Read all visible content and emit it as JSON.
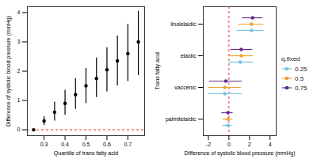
{
  "chart_data": [
    {
      "type": "scatter",
      "xlabel": "Quantile of trans fatty acid",
      "ylabel": "Difference of systolic blood pressure (mmHg)",
      "x": [
        0.25,
        0.3,
        0.35,
        0.4,
        0.45,
        0.5,
        0.55,
        0.6,
        0.65,
        0.7,
        0.75
      ],
      "values": [
        0,
        0.3,
        0.6,
        0.9,
        1.2,
        1.5,
        1.75,
        2.05,
        2.35,
        2.6,
        3.0
      ],
      "lower": [
        0,
        0.15,
        0.3,
        0.5,
        0.7,
        0.9,
        1.1,
        1.3,
        1.5,
        1.65,
        1.85
      ],
      "upper": [
        0,
        0.45,
        0.95,
        1.35,
        1.75,
        2.1,
        2.45,
        2.8,
        3.2,
        3.6,
        4.05
      ],
      "color": "#000000",
      "reference_line": 0,
      "xlim": [
        0.22,
        0.78
      ],
      "xticks": [
        0.3,
        0.4,
        0.5,
        0.6,
        0.7
      ],
      "ylim": [
        -0.2,
        4.2
      ],
      "yticks": [
        0,
        1,
        2,
        3,
        4
      ]
    },
    {
      "type": "scatter",
      "orientation": "horizontal",
      "xlabel": "Difference of systolic blood pressure (mmHg)",
      "ylabel": "Trans fatty acid",
      "categories": [
        "linolelaidic",
        "elaidic",
        "vaccenic",
        "palmitelaidic"
      ],
      "legend_title": "q.fixed",
      "legend": "right",
      "series": [
        {
          "name": "0.25",
          "color": "#74C2E1",
          "values": [
            2.2,
            1.1,
            -0.4,
            -0.1
          ],
          "lower": [
            0.8,
            0.0,
            -2.0,
            -0.6
          ],
          "upper": [
            3.4,
            2.4,
            1.3,
            0.3
          ]
        },
        {
          "name": "0.5",
          "color": "#F0A030",
          "values": [
            2.2,
            1.2,
            -0.4,
            -0.1
          ],
          "lower": [
            0.9,
            0.1,
            -2.0,
            -0.6
          ],
          "upper": [
            3.4,
            2.4,
            1.2,
            0.4
          ]
        },
        {
          "name": "0.75",
          "color": "#5E2B86",
          "values": [
            2.3,
            1.2,
            -0.3,
            -0.1
          ],
          "lower": [
            1.3,
            0.2,
            -1.9,
            -0.7
          ],
          "upper": [
            3.3,
            2.3,
            1.3,
            0.4
          ]
        }
      ],
      "reference_line": 0,
      "xlim": [
        -2.5,
        4.6
      ],
      "xticks": [
        -2,
        0,
        2,
        4
      ]
    }
  ]
}
